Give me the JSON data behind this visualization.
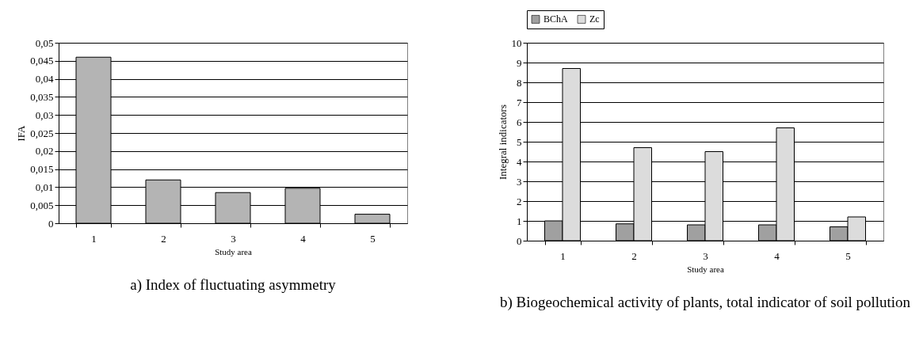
{
  "chart_data": [
    {
      "type": "bar",
      "title": "a)   Index of fluctuating asymmetry",
      "xlabel": "Study area",
      "ylabel": "IFA",
      "categories": [
        "1",
        "2",
        "3",
        "4",
        "5"
      ],
      "series": [
        {
          "color": "#b4b4b4",
          "values": [
            0.046,
            0.012,
            0.0085,
            0.0097,
            0.0025
          ]
        }
      ],
      "ylim": [
        0,
        0.05
      ],
      "yticks": [
        0,
        {
          "value": 0.005,
          "label": "0,005"
        },
        {
          "value": 0.01,
          "label": "0,01"
        },
        {
          "value": 0.015,
          "label": "0,015"
        },
        {
          "value": 0.02,
          "label": "0,02"
        },
        {
          "value": 0.025,
          "label": "0,025"
        },
        {
          "value": 0.03,
          "label": "0,03"
        },
        {
          "value": 0.035,
          "label": "0,035"
        },
        {
          "value": 0.04,
          "label": "0,04"
        },
        {
          "value": 0.045,
          "label": "0,045"
        },
        {
          "value": 0.05,
          "label": "0,05"
        }
      ],
      "grid": "y"
    },
    {
      "type": "bar",
      "title": "b)   Biogeochemical activity of plants, total indicator of soil pollution",
      "xlabel": "Study area",
      "ylabel": "Integral indicators",
      "categories": [
        "1",
        "2",
        "3",
        "4",
        "5"
      ],
      "series": [
        {
          "name": "BChA",
          "color": "#a0a0a0",
          "values": [
            1.0,
            0.85,
            0.8,
            0.8,
            0.7
          ]
        },
        {
          "name": "Zc",
          "color": "#dcdcdc",
          "values": [
            8.7,
            4.7,
            4.5,
            5.7,
            1.2
          ]
        }
      ],
      "ylim": [
        0,
        10
      ],
      "yticks": [
        0,
        1,
        2,
        3,
        4,
        5,
        6,
        7,
        8,
        9,
        10
      ],
      "grid": "y",
      "legend": "top"
    }
  ]
}
